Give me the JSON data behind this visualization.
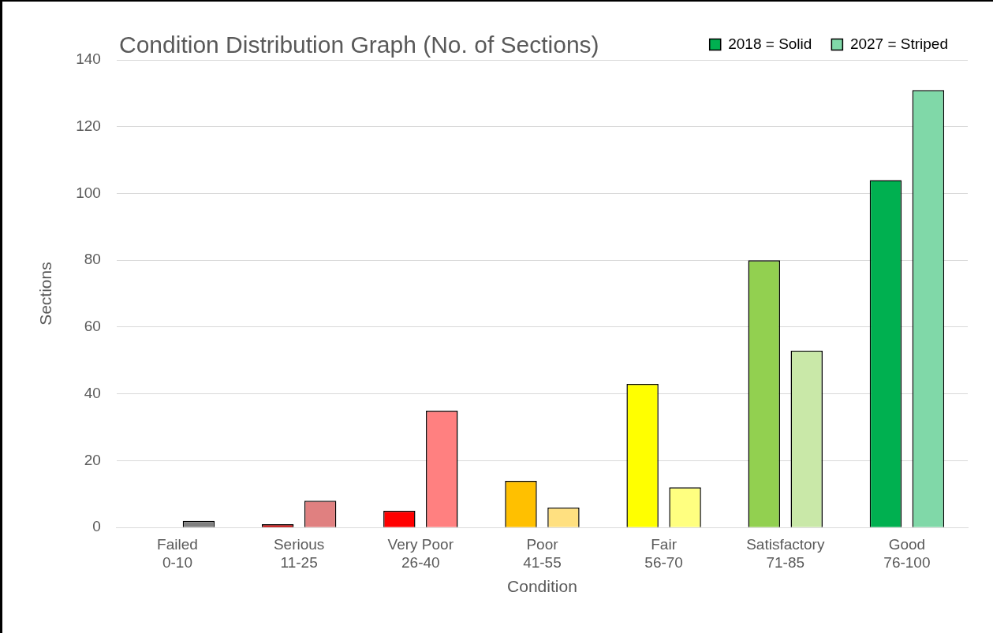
{
  "chart_data": {
    "type": "bar",
    "title": "Condition Distribution Graph (No. of Sections)",
    "xlabel": "Condition",
    "ylabel": "Sections",
    "categories": [
      "Failed 0-10",
      "Serious 11-25",
      "Very Poor 26-40",
      "Poor 41-55",
      "Fair 56-70",
      "Satisfactory 71-85",
      "Good 76-100"
    ],
    "series": [
      {
        "name": "2018 = Solid",
        "color": "#00b050",
        "colors": [
          "#000000",
          "#c00000",
          "#ff0000",
          "#ffc000",
          "#ffff00",
          "#92d050",
          "#00b050"
        ],
        "values": [
          0,
          1,
          5,
          14,
          43,
          80,
          104
        ]
      },
      {
        "name": "2027 = Striped",
        "color": "#80d8a8",
        "colors": [
          "#808080",
          "#e08080",
          "#ff8080",
          "#ffe080",
          "#ffff80",
          "#c9e8a8",
          "#80d8a8"
        ],
        "values": [
          2,
          8,
          35,
          6,
          12,
          53,
          131
        ]
      }
    ],
    "ylim": [
      0,
      140
    ],
    "yticks": [
      0,
      20,
      40,
      60,
      80,
      100,
      120,
      140
    ],
    "grid": "y",
    "legend": "top right"
  }
}
